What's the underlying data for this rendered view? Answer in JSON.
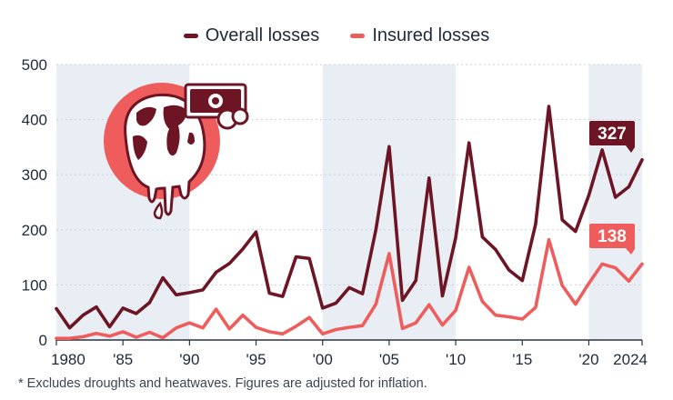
{
  "legend": {
    "overall_label": "Overall losses",
    "insured_label": "Insured losses"
  },
  "footnote": "* Excludes droughts and heatwaves. Figures are adjusted for inflation.",
  "colors": {
    "overall": "#6d1524",
    "insured": "#ee5c5c",
    "band": "#e9eef4",
    "grid": "#c9d2dc"
  },
  "callouts": {
    "overall": "327",
    "insured": "138"
  },
  "chart_data": {
    "type": "line",
    "title": "",
    "xlabel": "",
    "ylabel": "",
    "ylim": [
      0,
      500
    ],
    "y_ticks": [
      0,
      100,
      200,
      300,
      400,
      500
    ],
    "x_ticks": [
      {
        "year": 1980,
        "label": "1980"
      },
      {
        "year": 1985,
        "label": "'85"
      },
      {
        "year": 1990,
        "label": "'90"
      },
      {
        "year": 1995,
        "label": "'95"
      },
      {
        "year": 2000,
        "label": "'00"
      },
      {
        "year": 2005,
        "label": "'05"
      },
      {
        "year": 2010,
        "label": "'10"
      },
      {
        "year": 2015,
        "label": "'15"
      },
      {
        "year": 2020,
        "label": "'20"
      },
      {
        "year": 2024,
        "label": "2024"
      }
    ],
    "shaded_year_ranges": [
      [
        1980,
        1990
      ],
      [
        2000,
        2010
      ],
      [
        2020,
        2024
      ]
    ],
    "grid": true,
    "legend_position": "top-center",
    "x": [
      1980,
      1981,
      1982,
      1983,
      1984,
      1985,
      1986,
      1987,
      1988,
      1989,
      1990,
      1991,
      1992,
      1993,
      1994,
      1995,
      1996,
      1997,
      1998,
      1999,
      2000,
      2001,
      2002,
      2003,
      2004,
      2005,
      2006,
      2007,
      2008,
      2009,
      2010,
      2011,
      2012,
      2013,
      2014,
      2015,
      2016,
      2017,
      2018,
      2019,
      2020,
      2021,
      2022,
      2023,
      2024
    ],
    "series": [
      {
        "name": "Overall losses",
        "values": [
          57,
          22,
          45,
          60,
          24,
          58,
          48,
          68,
          113,
          82,
          86,
          91,
          123,
          139,
          165,
          196,
          85,
          79,
          151,
          148,
          58,
          67,
          95,
          84,
          200,
          351,
          72,
          108,
          294,
          80,
          186,
          358,
          187,
          164,
          127,
          108,
          210,
          424,
          218,
          197,
          263,
          345,
          259,
          278,
          327
        ]
      },
      {
        "name": "Insured losses",
        "values": [
          3,
          3,
          6,
          12,
          7,
          15,
          5,
          14,
          4,
          22,
          31,
          22,
          56,
          20,
          45,
          23,
          15,
          11,
          25,
          41,
          11,
          19,
          23,
          26,
          65,
          157,
          21,
          31,
          64,
          27,
          54,
          132,
          70,
          45,
          42,
          38,
          59,
          182,
          99,
          65,
          103,
          138,
          131,
          107,
          138
        ]
      }
    ]
  }
}
